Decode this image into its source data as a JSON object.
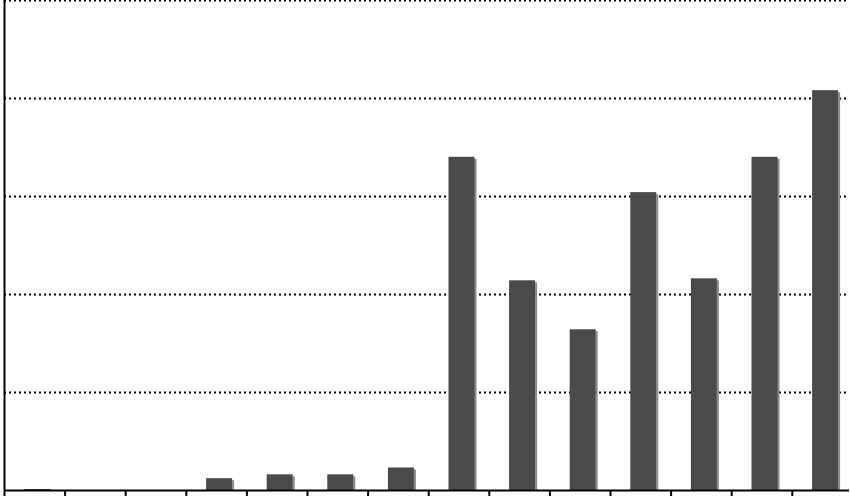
{
  "chart_data": {
    "type": "bar",
    "title": "",
    "xlabel": "",
    "ylabel": "",
    "categories": [
      "",
      "",
      "",
      "",
      "",
      "",
      "",
      "",
      "",
      "",
      "",
      "",
      "",
      ""
    ],
    "values": [
      0.1,
      0,
      0,
      1.2,
      1.6,
      1.6,
      2.3,
      34.0,
      21.4,
      16.4,
      30.4,
      21.6,
      34.0,
      40.8
    ],
    "ylim": [
      0,
      50
    ],
    "grid": true,
    "grid_style": "dotted",
    "colors": {
      "bar": "#4a4a4a",
      "axis": "#000000",
      "grid": "#000000"
    }
  }
}
